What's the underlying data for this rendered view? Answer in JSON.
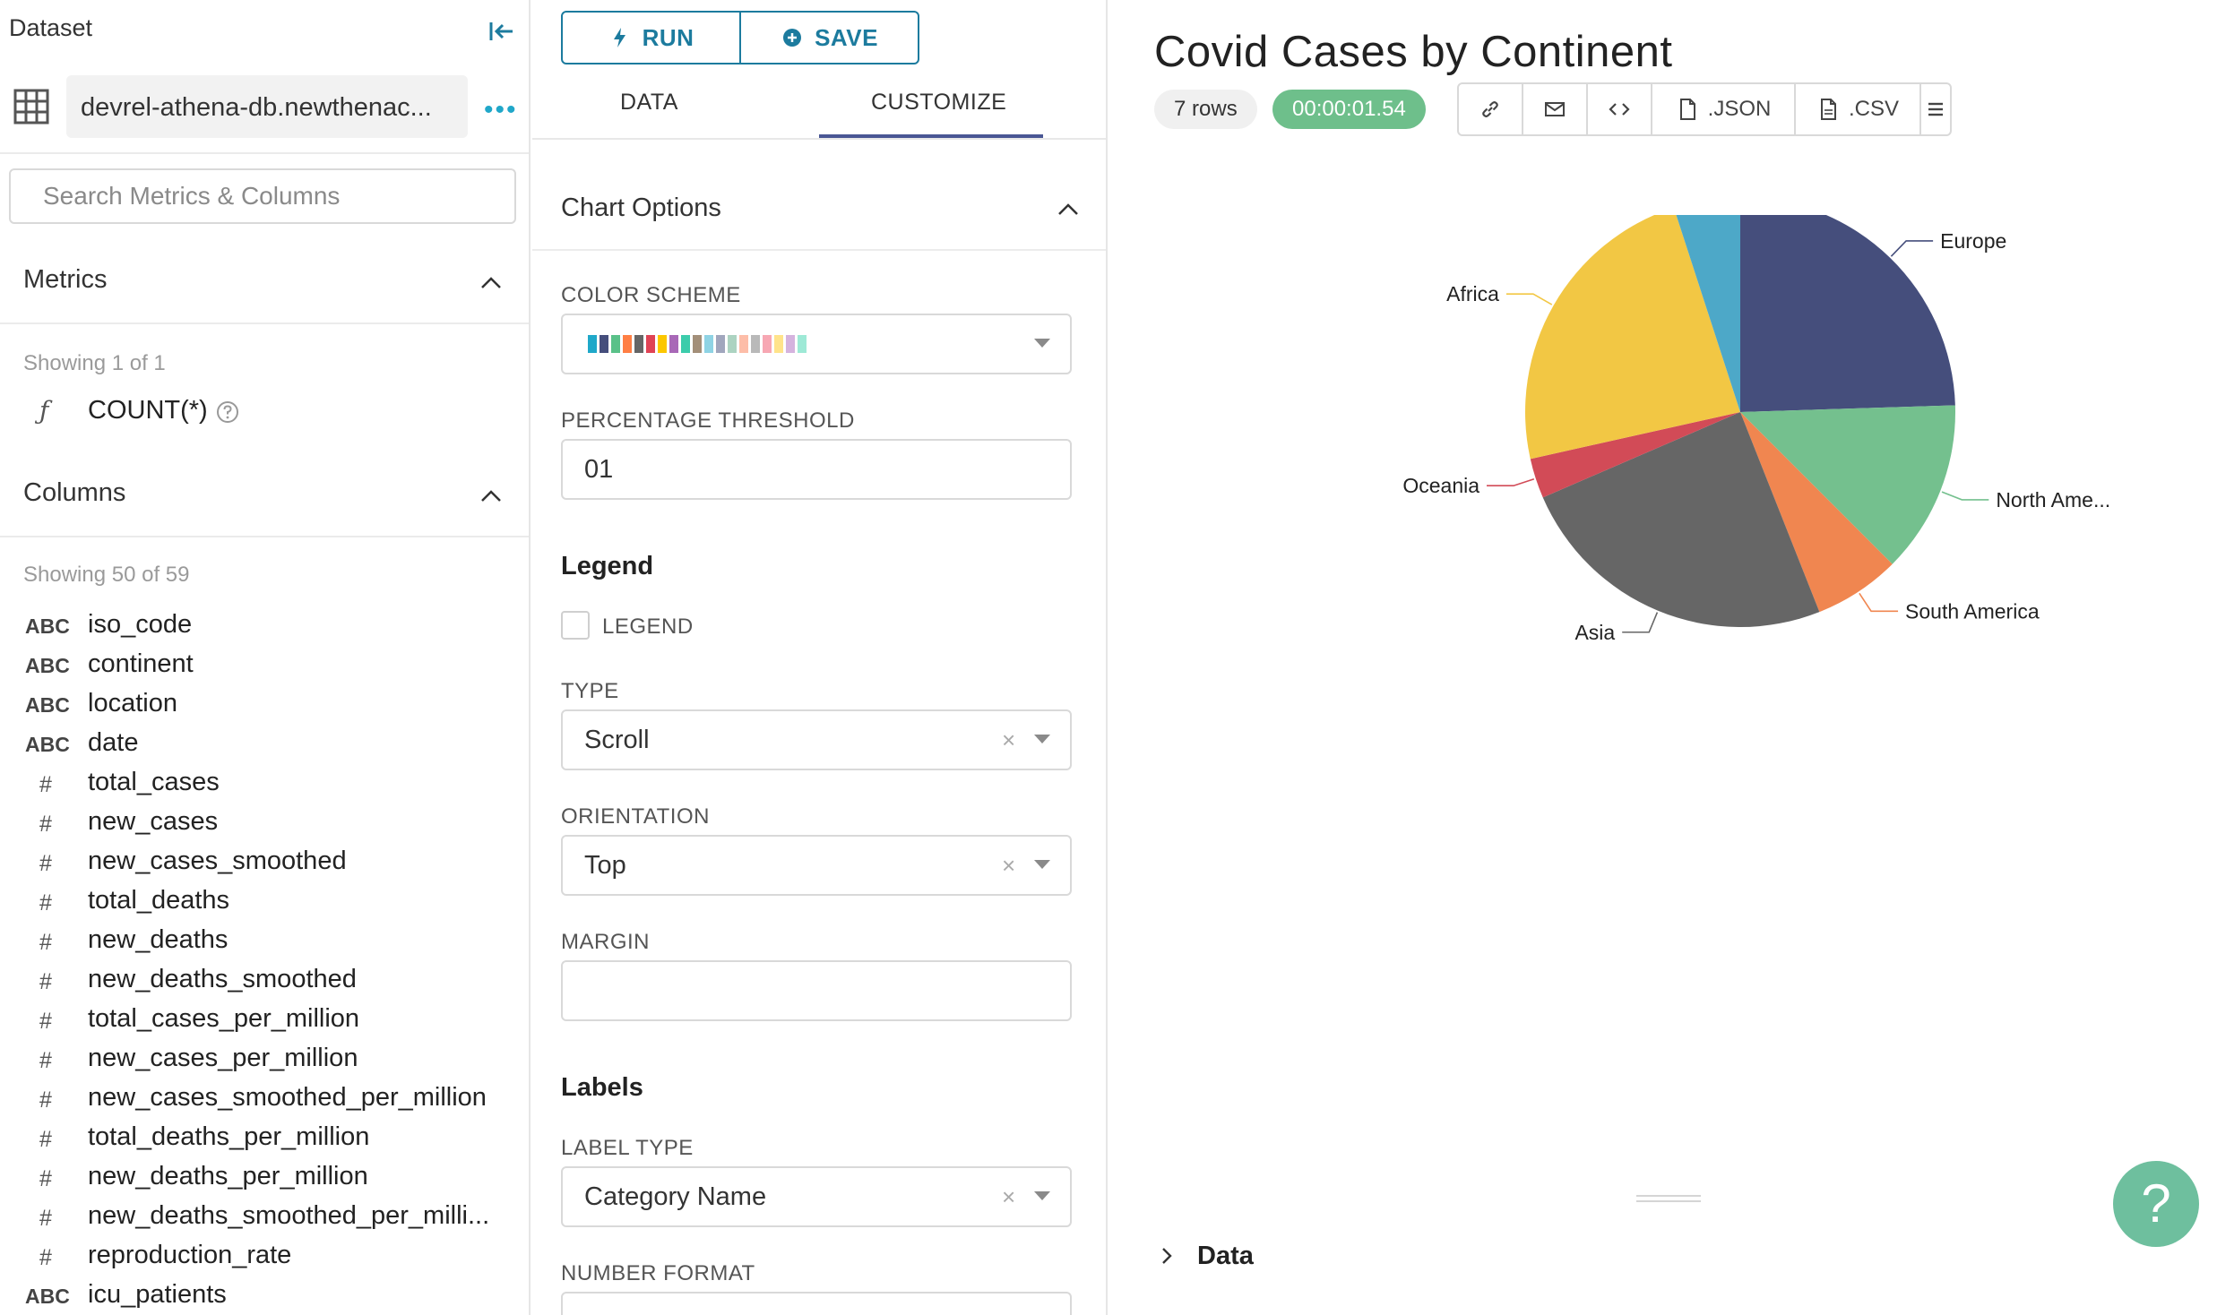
{
  "left": {
    "dataset_title": "Dataset",
    "dataset_name": "devrel-athena-db.newthenac...",
    "search_placeholder": "Search Metrics & Columns",
    "metrics": {
      "label": "Metrics",
      "showing": "Showing 1 of 1",
      "items": [
        {
          "icon": "function-icon",
          "name": "COUNT(*)"
        }
      ]
    },
    "columns": {
      "label": "Columns",
      "showing": "Showing 50 of 59",
      "items": [
        {
          "type": "ABC",
          "name": "iso_code"
        },
        {
          "type": "ABC",
          "name": "continent"
        },
        {
          "type": "ABC",
          "name": "location"
        },
        {
          "type": "ABC",
          "name": "date"
        },
        {
          "type": "#",
          "name": "total_cases"
        },
        {
          "type": "#",
          "name": "new_cases"
        },
        {
          "type": "#",
          "name": "new_cases_smoothed"
        },
        {
          "type": "#",
          "name": "total_deaths"
        },
        {
          "type": "#",
          "name": "new_deaths"
        },
        {
          "type": "#",
          "name": "new_deaths_smoothed"
        },
        {
          "type": "#",
          "name": "total_cases_per_million"
        },
        {
          "type": "#",
          "name": "new_cases_per_million"
        },
        {
          "type": "#",
          "name": "new_cases_smoothed_per_million"
        },
        {
          "type": "#",
          "name": "total_deaths_per_million"
        },
        {
          "type": "#",
          "name": "new_deaths_per_million"
        },
        {
          "type": "#",
          "name": "new_deaths_smoothed_per_milli..."
        },
        {
          "type": "#",
          "name": "reproduction_rate"
        },
        {
          "type": "ABC",
          "name": "icu_patients"
        }
      ]
    }
  },
  "mid": {
    "run_label": "RUN",
    "save_label": "SAVE",
    "tab_data": "DATA",
    "tab_customize": "CUSTOMIZE",
    "chart_options": "Chart Options",
    "color_scheme_label": "COLOR SCHEME",
    "color_scheme_swatches": [
      "#1fa8c9",
      "#454e7c",
      "#5ac189",
      "#ff7f44",
      "#666666",
      "#e04355",
      "#fcc700",
      "#a868b7",
      "#3cccab",
      "#a38f79",
      "#8fd3e4",
      "#a1a6bd",
      "#acd3c1",
      "#fdbda8",
      "#b9b9b9",
      "#f7a7b3",
      "#ffe38b",
      "#d5b3de",
      "#9ee9d6"
    ],
    "percentage_threshold_label": "PERCENTAGE THRESHOLD",
    "percentage_threshold_value": "01",
    "legend_heading": "Legend",
    "legend_checkbox_label": "LEGEND",
    "type_label": "TYPE",
    "type_value": "Scroll",
    "orientation_label": "ORIENTATION",
    "orientation_value": "Top",
    "margin_label": "MARGIN",
    "margin_value": "",
    "labels_heading": "Labels",
    "label_type_label": "LABEL TYPE",
    "label_type_value": "Category Name",
    "number_format_label": "NUMBER FORMAT"
  },
  "right": {
    "title": "Covid Cases by Continent",
    "rows": "7 rows",
    "timer": "00:00:01.54",
    "json_label": ".JSON",
    "csv_label": ".CSV",
    "data_section": "Data"
  },
  "chart_data": {
    "type": "pie",
    "title": "Covid Cases by Continent",
    "slices": [
      {
        "label": "Europe",
        "value": 24.5,
        "color": "#454e7c"
      },
      {
        "label": "North Ame...",
        "value": 13.0,
        "color": "#74c08e"
      },
      {
        "label": "South America",
        "value": 6.5,
        "color": "#f08650"
      },
      {
        "label": "Asia",
        "value": 24.5,
        "color": "#666666"
      },
      {
        "label": "Oceania",
        "value": 3.0,
        "color": "#d24b57"
      },
      {
        "label": "Africa",
        "value": 23.5,
        "color": "#f2c744"
      },
      {
        "label": "",
        "value": 5.0,
        "color": "#4da8c8"
      }
    ]
  }
}
